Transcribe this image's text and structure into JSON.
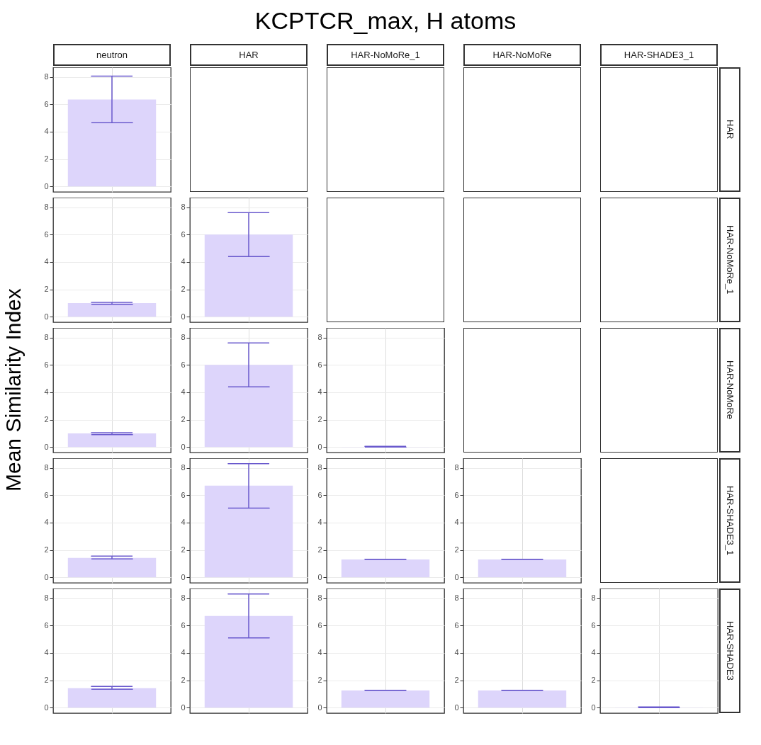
{
  "chart_data": [
    {
      "type": "other",
      "title": "KCPTCR_max, H atoms",
      "ylabel": "Mean Similarity Index"
    },
    {
      "type": "bar",
      "title": "neutron",
      "categories": [
        null
      ],
      "values": [
        6.35
      ],
      "errors": [
        [
          4.65,
          8.05
        ]
      ],
      "color": "#ddd5fb",
      "ylim": [
        -0.4,
        8.7
      ],
      "yticks": [
        0,
        2,
        4,
        6,
        8
      ],
      "grid": true,
      "tick_labels": "y"
    },
    {
      "type": "other",
      "title": "HAR"
    },
    {
      "type": "other",
      "title": "HAR-NoMoRe_1"
    },
    {
      "type": "other",
      "title": "HAR-NoMoRe"
    },
    {
      "type": "other",
      "title": "HAR-SHADE3_1",
      "y2label": "HAR"
    },
    {
      "type": "bar",
      "categories": [
        null
      ],
      "values": [
        1.0
      ],
      "errors": [
        [
          0.9,
          1.05
        ]
      ],
      "color": "#ddd5fb",
      "ylim": [
        -0.4,
        8.7
      ],
      "yticks": [
        0,
        2,
        4,
        6,
        8
      ],
      "grid": true,
      "tick_labels": "y"
    },
    {
      "type": "bar",
      "categories": [
        null
      ],
      "values": [
        6.0
      ],
      "errors": [
        [
          4.4,
          7.6
        ]
      ],
      "color": "#ddd5fb",
      "ylim": [
        -0.4,
        8.7
      ],
      "yticks": [
        0,
        2,
        4,
        6,
        8
      ],
      "grid": true,
      "tick_labels": "y"
    },
    {
      "type": "other"
    },
    {
      "type": "other"
    },
    {
      "type": "other",
      "y2label": "HAR-NoMoRe_1"
    },
    {
      "type": "bar",
      "categories": [
        null
      ],
      "values": [
        1.0
      ],
      "errors": [
        [
          0.9,
          1.05
        ]
      ],
      "color": "#ddd5fb",
      "ylim": [
        -0.4,
        8.7
      ],
      "yticks": [
        0,
        2,
        4,
        6,
        8
      ],
      "grid": true,
      "tick_labels": "y"
    },
    {
      "type": "bar",
      "categories": [
        null
      ],
      "values": [
        6.0
      ],
      "errors": [
        [
          4.4,
          7.6
        ]
      ],
      "color": "#ddd5fb",
      "ylim": [
        -0.4,
        8.7
      ],
      "yticks": [
        0,
        2,
        4,
        6,
        8
      ],
      "grid": true,
      "tick_labels": "y"
    },
    {
      "type": "bar",
      "categories": [
        null
      ],
      "values": [
        0.02
      ],
      "errors": [
        [
          0,
          0.05
        ]
      ],
      "color": "#ddd5fb",
      "ylim": [
        -0.4,
        8.7
      ],
      "yticks": [
        0,
        2,
        4,
        6,
        8
      ],
      "grid": true,
      "tick_labels": "y"
    },
    {
      "type": "other"
    },
    {
      "type": "other",
      "y2label": "HAR-NoMoRe"
    },
    {
      "type": "bar",
      "categories": [
        null
      ],
      "values": [
        1.42
      ],
      "errors": [
        [
          1.35,
          1.55
        ]
      ],
      "color": "#ddd5fb",
      "ylim": [
        -0.4,
        8.7
      ],
      "yticks": [
        0,
        2,
        4,
        6,
        8
      ],
      "grid": true,
      "tick_labels": "y"
    },
    {
      "type": "bar",
      "categories": [
        null
      ],
      "values": [
        6.7
      ],
      "errors": [
        [
          5.05,
          8.3
        ]
      ],
      "color": "#ddd5fb",
      "ylim": [
        -0.4,
        8.7
      ],
      "yticks": [
        0,
        2,
        4,
        6,
        8
      ],
      "grid": true,
      "tick_labels": "y"
    },
    {
      "type": "bar",
      "categories": [
        null
      ],
      "values": [
        1.3
      ],
      "errors": [
        [
          1.3,
          1.32
        ]
      ],
      "color": "#ddd5fb",
      "ylim": [
        -0.4,
        8.7
      ],
      "yticks": [
        0,
        2,
        4,
        6,
        8
      ],
      "grid": true,
      "tick_labels": "y"
    },
    {
      "type": "bar",
      "categories": [
        null
      ],
      "values": [
        1.3
      ],
      "errors": [
        [
          1.3,
          1.32
        ]
      ],
      "color": "#ddd5fb",
      "ylim": [
        -0.4,
        8.7
      ],
      "yticks": [
        0,
        2,
        4,
        6,
        8
      ],
      "grid": true,
      "tick_labels": "y"
    },
    {
      "type": "other",
      "y2label": "HAR-SHADE3_1"
    },
    {
      "type": "bar",
      "categories": [
        null
      ],
      "values": [
        1.42
      ],
      "errors": [
        [
          1.35,
          1.55
        ]
      ],
      "color": "#ddd5fb",
      "ylim": [
        -0.4,
        8.7
      ],
      "yticks": [
        0,
        2,
        4,
        6,
        8
      ],
      "grid": true,
      "tick_labels": "y"
    },
    {
      "type": "bar",
      "categories": [
        null
      ],
      "values": [
        6.7
      ],
      "errors": [
        [
          5.1,
          8.3
        ]
      ],
      "color": "#ddd5fb",
      "ylim": [
        -0.4,
        8.7
      ],
      "yticks": [
        0,
        2,
        4,
        6,
        8
      ],
      "grid": true,
      "tick_labels": "y"
    },
    {
      "type": "bar",
      "categories": [
        null
      ],
      "values": [
        1.25
      ],
      "errors": [
        [
          1.25,
          1.27
        ]
      ],
      "color": "#ddd5fb",
      "ylim": [
        -0.4,
        8.7
      ],
      "yticks": [
        0,
        2,
        4,
        6,
        8
      ],
      "grid": true,
      "tick_labels": "y"
    },
    {
      "type": "bar",
      "categories": [
        null
      ],
      "values": [
        1.25
      ],
      "errors": [
        [
          1.25,
          1.27
        ]
      ],
      "color": "#ddd5fb",
      "ylim": [
        -0.4,
        8.7
      ],
      "yticks": [
        0,
        2,
        4,
        6,
        8
      ],
      "grid": true,
      "tick_labels": "y"
    },
    {
      "type": "bar",
      "y2label": "HAR-SHADE3",
      "categories": [
        null
      ],
      "values": [
        0.02
      ],
      "errors": [
        [
          0,
          0.05
        ]
      ],
      "color": "#ddd5fb",
      "ylim": [
        -0.4,
        8.7
      ],
      "yticks": [
        0,
        2,
        4,
        6,
        8
      ],
      "grid": true,
      "tick_labels": "y"
    }
  ]
}
